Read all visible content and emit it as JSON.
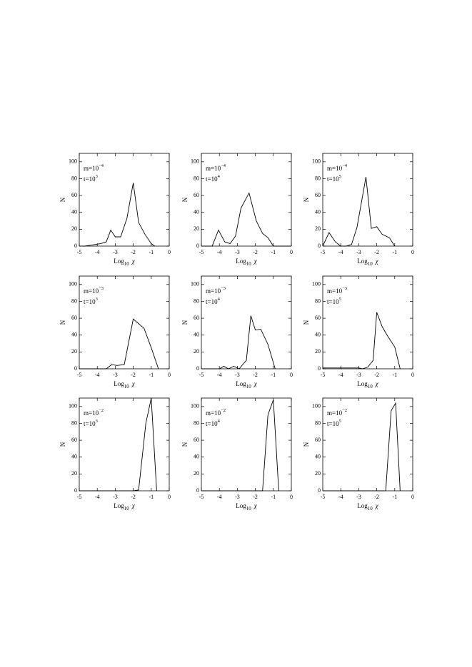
{
  "chart_data": [
    {
      "type": "line",
      "annotations": [
        {
          "text": "m=10",
          "sup": "−4"
        },
        {
          "text": "t=10",
          "sup": "3"
        }
      ],
      "xlabel": {
        "text": "Log",
        "sub": "10",
        "var": "χ"
      },
      "ylabel": "N",
      "color": "#000000",
      "x": [
        -5,
        -4.7,
        -4.4,
        -4.1,
        -3.8,
        -3.5,
        -3.25,
        -3.0,
        -2.7,
        -2.35,
        -2.0,
        -1.7,
        -1.35,
        -1.0,
        -0.8
      ],
      "values": [
        0,
        0,
        1,
        2,
        3,
        5,
        19,
        11,
        11,
        33,
        75,
        28,
        14,
        3,
        0
      ],
      "xlim": [
        -5,
        0
      ],
      "ylim": [
        0,
        110
      ],
      "xticks": [
        -5,
        -4,
        -3,
        -2,
        -1,
        0
      ],
      "yticks": [
        0,
        20,
        40,
        60,
        80,
        100
      ]
    },
    {
      "type": "line",
      "annotations": [
        {
          "text": "m=10",
          "sup": "−4"
        },
        {
          "text": "t=10",
          "sup": "4"
        }
      ],
      "xlabel": {
        "text": "Log",
        "sub": "10",
        "var": "χ"
      },
      "ylabel": "N",
      "color": "#000000",
      "x": [
        -5,
        -4.4,
        -4.05,
        -3.7,
        -3.4,
        -3.1,
        -2.8,
        -2.35,
        -1.95,
        -1.6,
        -1.3,
        -1.0,
        0
      ],
      "values": [
        0,
        0,
        19,
        5,
        3,
        12,
        45,
        63,
        30,
        15,
        10,
        0,
        0
      ],
      "xlim": [
        -5,
        0
      ],
      "ylim": [
        0,
        110
      ],
      "xticks": [
        -5,
        -4,
        -3,
        -2,
        -1,
        0
      ],
      "yticks": [
        0,
        20,
        40,
        60,
        80,
        100
      ]
    },
    {
      "type": "line",
      "annotations": [
        {
          "text": "m=10",
          "sup": "−4"
        },
        {
          "text": "t=10",
          "sup": "5"
        }
      ],
      "xlabel": {
        "text": "Log",
        "sub": "10",
        "var": "χ"
      },
      "ylabel": "N",
      "color": "#000000",
      "x": [
        -5,
        -4.65,
        -4.3,
        -4.0,
        -3.7,
        -3.4,
        -3.1,
        -2.6,
        -2.3,
        -2.0,
        -1.7,
        -1.3,
        -1.0
      ],
      "values": [
        0,
        16,
        5,
        0,
        0,
        2,
        22,
        82,
        21,
        23,
        14,
        10,
        0
      ],
      "xlim": [
        -5,
        0
      ],
      "ylim": [
        0,
        110
      ],
      "xticks": [
        -5,
        -4,
        -3,
        -2,
        -1,
        0
      ],
      "yticks": [
        0,
        20,
        40,
        60,
        80,
        100
      ]
    },
    {
      "type": "line",
      "annotations": [
        {
          "text": "m=10",
          "sup": "−3"
        },
        {
          "text": "t=10",
          "sup": "3"
        }
      ],
      "xlabel": {
        "text": "Log",
        "sub": "10",
        "var": "χ"
      },
      "ylabel": "N",
      "color": "#000000",
      "x": [
        -5,
        -3.5,
        -3.2,
        -2.9,
        -2.5,
        -2.0,
        -1.4,
        -1.0,
        -0.6
      ],
      "values": [
        0,
        0,
        5,
        4,
        5,
        59,
        48,
        25,
        0
      ],
      "xlim": [
        -5,
        0
      ],
      "ylim": [
        0,
        110
      ],
      "xticks": [
        -5,
        -4,
        -3,
        -2,
        -1,
        0
      ],
      "yticks": [
        0,
        20,
        40,
        60,
        80,
        100
      ]
    },
    {
      "type": "line",
      "annotations": [
        {
          "text": "m=10",
          "sup": "−3"
        },
        {
          "text": "t=10",
          "sup": "4"
        }
      ],
      "xlabel": {
        "text": "Log",
        "sub": "10",
        "var": "χ"
      },
      "ylabel": "N",
      "color": "#000000",
      "x": [
        -5,
        -4.0,
        -3.75,
        -3.5,
        -3.2,
        -2.9,
        -2.5,
        -2.25,
        -2.0,
        -1.7,
        -1.3,
        -0.9
      ],
      "values": [
        0,
        0,
        3,
        0,
        3,
        0,
        10,
        63,
        46,
        47,
        29,
        0
      ],
      "xlim": [
        -5,
        0
      ],
      "ylim": [
        0,
        110
      ],
      "xticks": [
        -5,
        -4,
        -3,
        -2,
        -1,
        0
      ],
      "yticks": [
        0,
        20,
        40,
        60,
        80,
        100
      ]
    },
    {
      "type": "line",
      "annotations": [
        {
          "text": "m=10",
          "sup": "−3"
        },
        {
          "text": "t=10",
          "sup": "5"
        }
      ],
      "xlabel": {
        "text": "Log",
        "sub": "10",
        "var": "χ"
      },
      "ylabel": "N",
      "color": "#000000",
      "x": [
        -5,
        -3.0,
        -2.8,
        -2.5,
        -2.2,
        -2.0,
        -1.7,
        -1.4,
        -1.0,
        -0.7
      ],
      "values": [
        1,
        1,
        0,
        2,
        10,
        67,
        50,
        39,
        26,
        0
      ],
      "xlim": [
        -5,
        0
      ],
      "ylim": [
        0,
        110
      ],
      "xticks": [
        -5,
        -4,
        -3,
        -2,
        -1,
        0
      ],
      "yticks": [
        0,
        20,
        40,
        60,
        80,
        100
      ]
    },
    {
      "type": "line",
      "annotations": [
        {
          "text": "m=10",
          "sup": "−2"
        },
        {
          "text": "t=10",
          "sup": "3"
        }
      ],
      "xlabel": {
        "text": "Log",
        "sub": "10",
        "var": "χ"
      },
      "ylabel": "N",
      "color": "#000000",
      "x": [
        -5,
        -2.0,
        -1.7,
        -1.3,
        -1.0,
        -0.7
      ],
      "values": [
        0,
        0,
        1,
        80,
        110,
        0
      ],
      "xlim": [
        -5,
        0
      ],
      "ylim": [
        0,
        110
      ],
      "xticks": [
        -5,
        -4,
        -3,
        -2,
        -1,
        0
      ],
      "yticks": [
        0,
        20,
        40,
        60,
        80,
        100
      ]
    },
    {
      "type": "line",
      "annotations": [
        {
          "text": "m=10",
          "sup": "−2"
        },
        {
          "text": "t=10",
          "sup": "4"
        }
      ],
      "xlabel": {
        "text": "Log",
        "sub": "10",
        "var": "χ"
      },
      "ylabel": "N",
      "color": "#000000",
      "x": [
        -5,
        -1.6,
        -1.3,
        -1.0,
        -0.7
      ],
      "values": [
        0,
        0,
        90,
        108,
        0
      ],
      "xlim": [
        -5,
        0
      ],
      "ylim": [
        0,
        110
      ],
      "xticks": [
        -5,
        -4,
        -3,
        -2,
        -1,
        0
      ],
      "yticks": [
        0,
        20,
        40,
        60,
        80,
        100
      ]
    },
    {
      "type": "line",
      "annotations": [
        {
          "text": "m=10",
          "sup": "−2"
        },
        {
          "text": "t=10",
          "sup": "5"
        }
      ],
      "xlabel": {
        "text": "Log",
        "sub": "10",
        "var": "χ"
      },
      "ylabel": "N",
      "color": "#000000",
      "x": [
        -5,
        -1.5,
        -1.2,
        -0.95,
        -0.7
      ],
      "values": [
        0,
        0,
        95,
        104,
        0
      ],
      "xlim": [
        -5,
        0
      ],
      "ylim": [
        0,
        110
      ],
      "xticks": [
        -5,
        -4,
        -3,
        -2,
        -1,
        0
      ],
      "yticks": [
        0,
        20,
        40,
        60,
        80,
        100
      ]
    }
  ]
}
